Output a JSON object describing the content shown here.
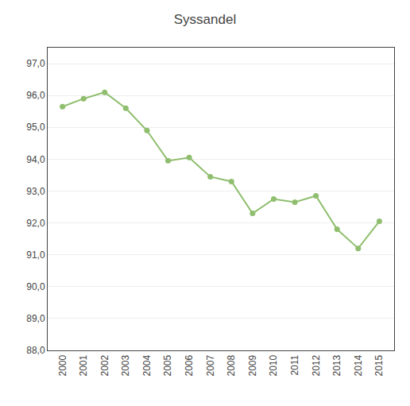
{
  "chart_data": {
    "type": "line",
    "title": "Syssandel",
    "x": [
      2000,
      2001,
      2002,
      2003,
      2004,
      2005,
      2006,
      2007,
      2008,
      2009,
      2010,
      2011,
      2012,
      2013,
      2014,
      2015
    ],
    "values": [
      95.65,
      95.9,
      96.1,
      95.6,
      94.9,
      93.95,
      94.05,
      93.45,
      93.3,
      92.3,
      92.75,
      92.65,
      92.85,
      91.8,
      91.2,
      92.05
    ],
    "color": "#8fbe6e",
    "marker": "circle",
    "xlim": [
      1999.3,
      2015.7
    ],
    "xticks": [
      2000,
      2001,
      2002,
      2003,
      2004,
      2005,
      2006,
      2007,
      2008,
      2009,
      2010,
      2011,
      2012,
      2013,
      2014,
      2015
    ],
    "ylim": [
      88.0,
      97.5
    ],
    "yticks": [
      {
        "value": 88.0,
        "label": "88,0"
      },
      {
        "value": 89.0,
        "label": "89,0"
      },
      {
        "value": 90.0,
        "label": "90,0"
      },
      {
        "value": 91.0,
        "label": "91,0"
      },
      {
        "value": 92.0,
        "label": "92,0"
      },
      {
        "value": 93.0,
        "label": "93,0"
      },
      {
        "value": 94.0,
        "label": "94,0"
      },
      {
        "value": 95.0,
        "label": "95,0"
      },
      {
        "value": 96.0,
        "label": "96,0"
      },
      {
        "value": 97.0,
        "label": "97,0"
      }
    ],
    "grid": "y"
  }
}
